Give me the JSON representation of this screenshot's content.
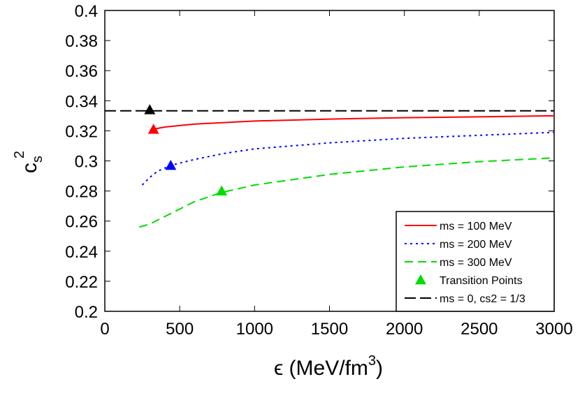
{
  "chart_data": {
    "type": "line",
    "xlabel": {
      "text": "ϵ (MeV/fm",
      "superscript": "3",
      "close": ")"
    },
    "ylabel": {
      "text": "c",
      "subscript": "s",
      "superscript": "2"
    },
    "xlim": [
      0,
      3000
    ],
    "xticks": [
      0,
      500,
      1000,
      1500,
      2000,
      2500,
      3000
    ],
    "ylim": [
      0.2,
      0.4
    ],
    "yticks": [
      0.2,
      0.22,
      0.24,
      0.26,
      0.28,
      0.3,
      0.32,
      0.34,
      0.36,
      0.38,
      0.4
    ],
    "legend": "lower right",
    "series": [
      {
        "name": "ms = 100 MeV",
        "color": "#ff0000",
        "linestyle": "solid",
        "x": [
          320,
          400,
          600,
          1000,
          1500,
          2000,
          2500,
          3000
        ],
        "values": [
          0.321,
          0.3225,
          0.3245,
          0.3265,
          0.3278,
          0.3287,
          0.3293,
          0.33
        ]
      },
      {
        "name": "ms = 200 MeV",
        "color": "#0000ff",
        "linestyle": "dotted",
        "x": [
          250,
          300,
          350,
          440,
          600,
          800,
          1000,
          1500,
          2000,
          2500,
          3000
        ],
        "values": [
          0.284,
          0.289,
          0.293,
          0.297,
          0.301,
          0.305,
          0.308,
          0.312,
          0.315,
          0.317,
          0.319
        ]
      },
      {
        "name": "ms = 300 MeV",
        "color": "#00dd00",
        "linestyle": "dashed",
        "x": [
          230,
          300,
          400,
          500,
          600,
          780,
          1000,
          1500,
          2000,
          2500,
          3000
        ],
        "values": [
          0.256,
          0.258,
          0.263,
          0.268,
          0.273,
          0.279,
          0.284,
          0.291,
          0.296,
          0.2995,
          0.302
        ]
      },
      {
        "name": "ms = 0, cs2 = 1/3",
        "color": "#000000",
        "linestyle": "longdash",
        "x": [
          0,
          3000
        ],
        "values": [
          0.3333,
          0.3333
        ]
      }
    ],
    "markers": {
      "name": "Transition Points",
      "legend_color": "#00dd00",
      "x": [
        300,
        325,
        440,
        780
      ],
      "values": [
        0.334,
        0.321,
        0.297,
        0.28
      ],
      "colors": [
        "#000000",
        "#ff0000",
        "#0000ff",
        "#00dd00"
      ]
    }
  }
}
